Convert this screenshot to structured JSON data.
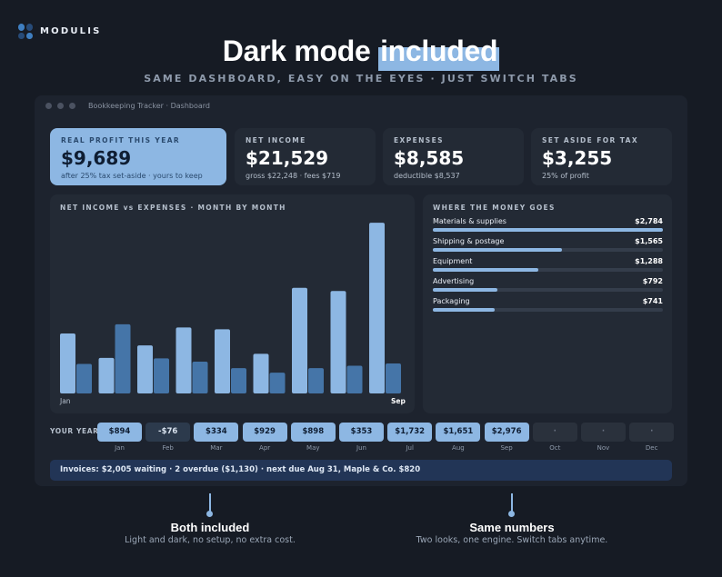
{
  "brand": {
    "name": "MODULIS",
    "dot_colors": [
      "#3f7fc1",
      "#274b78",
      "#274b78",
      "#3f7fc1"
    ]
  },
  "hero": {
    "title_pre": "Dark mode ",
    "title_highlight": "included",
    "subtitle": "SAME DASHBOARD, EASY ON THE EYES · JUST SWITCH TABS"
  },
  "window": {
    "title": "Bookkeeping Tracker · Dashboard"
  },
  "cards": [
    {
      "label": "REAL PROFIT THIS YEAR",
      "value": "$9,689",
      "sub": "after 25% tax set-aside · yours to keep"
    },
    {
      "label": "NET INCOME",
      "value": "$21,529",
      "sub": "gross $22,248 · fees $719"
    },
    {
      "label": "EXPENSES",
      "value": "$8,585",
      "sub": "deductible $8,537"
    },
    {
      "label": "SET ASIDE FOR TAX",
      "value": "$3,255",
      "sub": "25% of profit"
    }
  ],
  "chart_data": {
    "type": "bar",
    "title": "NET INCOME vs EXPENSES · MONTH BY MONTH",
    "categories": [
      "Jan",
      "Feb",
      "Mar",
      "Apr",
      "May",
      "Jun",
      "Jul",
      "Aug",
      "Sep"
    ],
    "axis_labels": {
      "start": "Jan",
      "end": "Sep"
    },
    "series": [
      {
        "values": [
          1300,
          770,
          1040,
          1430,
          1390,
          860,
          2290,
          2220,
          3700
        ],
        "color": "#8db7e3"
      },
      {
        "values": [
          640,
          1500,
          760,
          690,
          550,
          450,
          550,
          600,
          650
        ],
        "color": "#4575a8"
      }
    ],
    "ylim": [
      0,
      3800
    ],
    "grid": false,
    "legend": "none"
  },
  "money": {
    "title": "WHERE THE MONEY GOES",
    "items": [
      {
        "name": "Materials & supplies",
        "value": "$2,784",
        "fraction": 1.0
      },
      {
        "name": "Shipping & postage",
        "value": "$1,565",
        "fraction": 0.56
      },
      {
        "name": "Equipment",
        "value": "$1,288",
        "fraction": 0.46
      },
      {
        "name": "Advertising",
        "value": "$792",
        "fraction": 0.28
      },
      {
        "name": "Packaging",
        "value": "$741",
        "fraction": 0.27
      }
    ]
  },
  "year": {
    "label": "YOUR YEAR",
    "months": [
      {
        "month": "Jan",
        "value": "$894",
        "state": "pos"
      },
      {
        "month": "Feb",
        "value": "-$76",
        "state": "neg"
      },
      {
        "month": "Mar",
        "value": "$334",
        "state": "pos"
      },
      {
        "month": "Apr",
        "value": "$929",
        "state": "pos"
      },
      {
        "month": "May",
        "value": "$898",
        "state": "pos"
      },
      {
        "month": "Jun",
        "value": "$353",
        "state": "pos"
      },
      {
        "month": "Jul",
        "value": "$1,732",
        "state": "pos"
      },
      {
        "month": "Aug",
        "value": "$1,651",
        "state": "pos"
      },
      {
        "month": "Sep",
        "value": "$2,976",
        "state": "pos"
      },
      {
        "month": "Oct",
        "value": "·",
        "state": "empty"
      },
      {
        "month": "Nov",
        "value": "·",
        "state": "empty"
      },
      {
        "month": "Dec",
        "value": "·",
        "state": "empty"
      }
    ]
  },
  "invoice": {
    "text": "Invoices: $2,005 waiting · 2 overdue ($1,130) · next due Aug 31, Maple & Co. $820"
  },
  "callouts": [
    {
      "title": "Both included",
      "text": "Light and dark, no setup, no extra cost."
    },
    {
      "title": "Same numbers",
      "text": "Two looks, one engine. Switch tabs anytime."
    }
  ]
}
